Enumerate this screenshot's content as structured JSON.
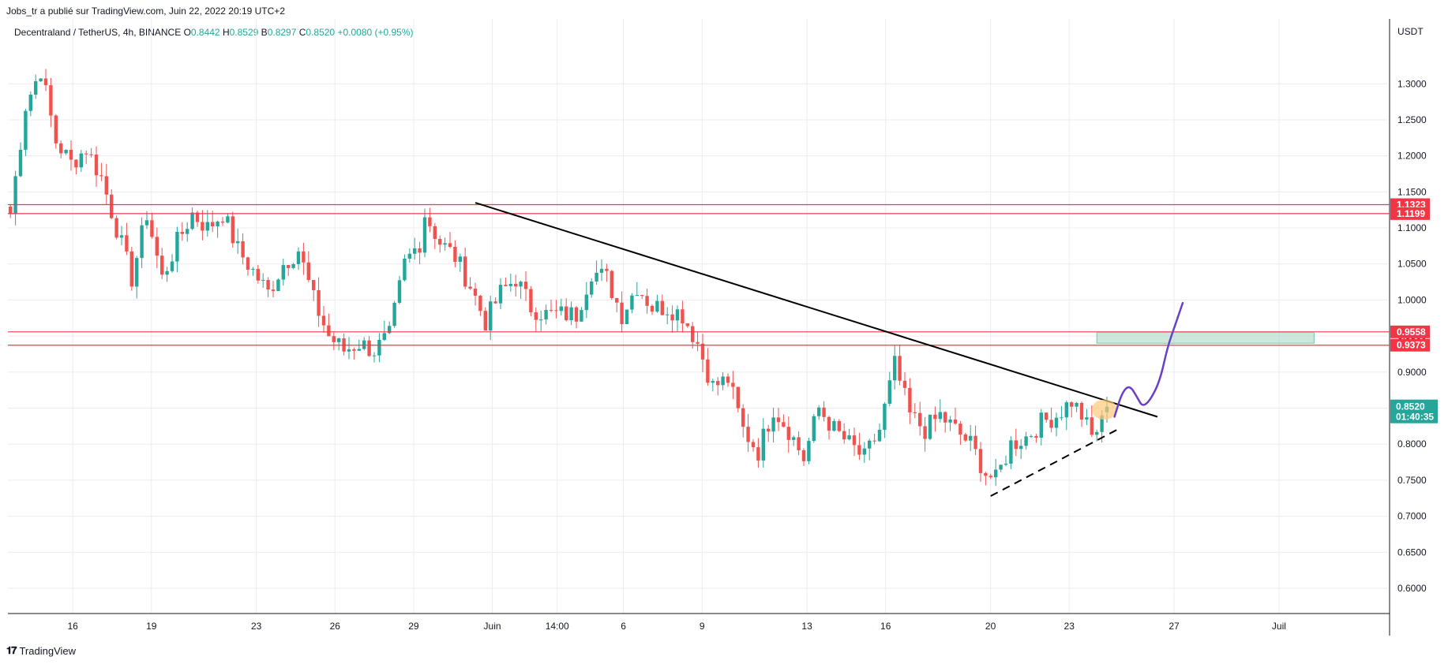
{
  "header": {
    "publisher": "Jobs_tr a publié sur TradingView.com, Juin 22, 2022 20:19 UTC+2"
  },
  "legend": {
    "symbol": "Decentraland / TetherUS, 4h, BINANCE",
    "o_label": "O",
    "o_value": "0.8442",
    "h_label": "H",
    "h_value": "0.8529",
    "b_label": "B",
    "b_value": "0.8297",
    "c_label": "C",
    "c_value": "0.8520",
    "change": "+0.0080 (+0.95%)"
  },
  "footer": {
    "brand": "TradingView"
  },
  "colors": {
    "up": "#26a69a",
    "down": "#ef5350",
    "grid": "#e9ecf2",
    "hline": "#f23645",
    "zone": "#a5d6c0",
    "path": "#6a3fc7",
    "circle": "#ffc87a"
  },
  "chart_data": {
    "type": "candlestick",
    "title": "Decentraland / TetherUS, 4h, BINANCE",
    "currency": "USDT",
    "ylim": [
      0.565,
      1.39
    ],
    "y_ticks": [
      "0.6000",
      "0.6500",
      "0.7000",
      "0.7500",
      "0.8000",
      "0.8500",
      "0.9000",
      "0.9500",
      "1.0000",
      "1.0500",
      "1.1000",
      "1.1500",
      "1.2000",
      "1.2500",
      "1.3000"
    ],
    "x_ticks": [
      {
        "label": "16",
        "pos": 0.047
      },
      {
        "label": "19",
        "pos": 0.104
      },
      {
        "label": "23",
        "pos": 0.18
      },
      {
        "label": "26",
        "pos": 0.237
      },
      {
        "label": "29",
        "pos": 0.294
      },
      {
        "label": "Juin",
        "pos": 0.351
      },
      {
        "label": "14:00",
        "pos": 0.398
      },
      {
        "label": "6",
        "pos": 0.446
      },
      {
        "label": "9",
        "pos": 0.503
      },
      {
        "label": "13",
        "pos": 0.579
      },
      {
        "label": "16",
        "pos": 0.636
      },
      {
        "label": "20",
        "pos": 0.712
      },
      {
        "label": "23",
        "pos": 0.769
      },
      {
        "label": "27",
        "pos": 0.845
      },
      {
        "label": "Juil",
        "pos": 0.921
      }
    ],
    "horizontal_levels": [
      {
        "label": "1.1323",
        "value": 1.1323
      },
      {
        "label": "1.1199",
        "value": 1.1199
      },
      {
        "label": "0.9558",
        "value": 0.9558
      },
      {
        "label": "0.9373",
        "value": 0.9373
      }
    ],
    "last_price": {
      "label": "0.8520",
      "value": 0.852,
      "countdown": "01:40:35"
    },
    "anchors": [
      [
        0,
        1.12
      ],
      [
        3,
        1.27
      ],
      [
        6,
        1.32
      ],
      [
        9,
        1.22
      ],
      [
        12,
        1.19
      ],
      [
        15,
        1.21
      ],
      [
        18,
        1.17
      ],
      [
        21,
        1.1
      ],
      [
        24,
        1.03
      ],
      [
        27,
        1.12
      ],
      [
        30,
        1.03
      ],
      [
        33,
        1.08
      ],
      [
        36,
        1.12
      ],
      [
        39,
        1.1
      ],
      [
        42,
        1.12
      ],
      [
        45,
        1.07
      ],
      [
        48,
        1.04
      ],
      [
        51,
        1.01
      ],
      [
        54,
        1.05
      ],
      [
        57,
        1.07
      ],
      [
        60,
        1.0
      ],
      [
        63,
        0.95
      ],
      [
        66,
        0.93
      ],
      [
        69,
        0.94
      ],
      [
        72,
        0.93
      ],
      [
        75,
        0.95
      ],
      [
        78,
        1.05
      ],
      [
        81,
        1.08
      ],
      [
        82,
        1.12
      ],
      [
        85,
        1.08
      ],
      [
        88,
        1.06
      ],
      [
        91,
        1.02
      ],
      [
        94,
        0.97
      ],
      [
        97,
        1.01
      ],
      [
        100,
        1.03
      ],
      [
        103,
        0.99
      ],
      [
        106,
        0.98
      ],
      [
        109,
        0.98
      ],
      [
        112,
        0.98
      ],
      [
        115,
        1.04
      ],
      [
        118,
        1.03
      ],
      [
        121,
        0.98
      ],
      [
        124,
        1.02
      ],
      [
        127,
        0.99
      ],
      [
        130,
        0.99
      ],
      [
        133,
        0.98
      ],
      [
        136,
        0.94
      ],
      [
        139,
        0.88
      ],
      [
        142,
        0.89
      ],
      [
        145,
        0.82
      ],
      [
        148,
        0.79
      ],
      [
        151,
        0.85
      ],
      [
        154,
        0.82
      ],
      [
        157,
        0.78
      ],
      [
        160,
        0.85
      ],
      [
        163,
        0.82
      ],
      [
        166,
        0.8
      ],
      [
        169,
        0.78
      ],
      [
        172,
        0.82
      ],
      [
        175,
        0.91
      ],
      [
        178,
        0.84
      ],
      [
        181,
        0.82
      ],
      [
        184,
        0.84
      ],
      [
        187,
        0.82
      ],
      [
        190,
        0.8
      ],
      [
        193,
        0.76
      ],
      [
        195,
        0.75
      ],
      [
        198,
        0.8
      ],
      [
        201,
        0.81
      ],
      [
        204,
        0.83
      ],
      [
        207,
        0.84
      ],
      [
        210,
        0.86
      ],
      [
        212,
        0.84
      ],
      [
        214,
        0.81
      ],
      [
        216,
        0.83
      ],
      [
        217,
        0.852
      ]
    ],
    "annotations": [
      {
        "type": "trendline",
        "style": "solid",
        "from": [
          92,
          1.135
        ],
        "to": [
          227,
          0.838
        ]
      },
      {
        "type": "trendline",
        "style": "dashed",
        "from": [
          194,
          0.728
        ],
        "to": [
          219,
          0.82
        ]
      },
      {
        "type": "zone",
        "x": [
          215,
          258
        ],
        "y": [
          0.94,
          0.955
        ]
      },
      {
        "type": "ellipse",
        "center": [
          216.5,
          0.848
        ],
        "ry": 0.014
      },
      {
        "type": "projection",
        "points": [
          [
            218.5,
            0.838
          ],
          [
            220,
            0.872
          ],
          [
            221.5,
            0.882
          ],
          [
            223,
            0.865
          ],
          [
            224,
            0.852
          ],
          [
            225.5,
            0.86
          ],
          [
            227.5,
            0.888
          ],
          [
            229,
            0.935
          ],
          [
            230.5,
            0.965
          ],
          [
            232,
            0.996
          ]
        ]
      }
    ]
  }
}
